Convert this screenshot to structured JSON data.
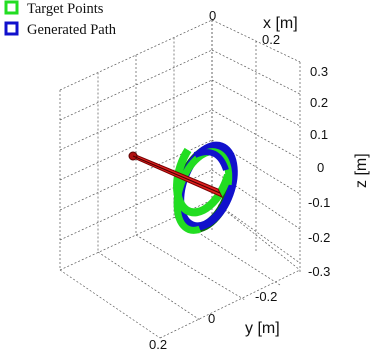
{
  "chart_data": {
    "type": "scatter",
    "projection": "3d",
    "legend": {
      "placement": "top-left",
      "entries": [
        {
          "name": "Target Points",
          "color": "#22dd22"
        },
        {
          "name": "Generated Path",
          "color": "#1111cc"
        }
      ]
    },
    "axes": {
      "x": {
        "label": "x [m]",
        "ticks": [
          "0",
          "0.2"
        ]
      },
      "y": {
        "label": "y [m]",
        "ticks": [
          "-0.2",
          "0",
          "0.2"
        ]
      },
      "z": {
        "label": "z [m]",
        "ticks": [
          "0.3",
          "0.2",
          "0.1",
          "0",
          "-0.1",
          "-0.2",
          "-0.3"
        ]
      }
    },
    "grid": true,
    "series": [
      {
        "name": "Target Points",
        "shape": "ring",
        "color": "#22dd22"
      },
      {
        "name": "Generated Path",
        "shape": "ring",
        "color": "#1111cc"
      }
    ],
    "tool_color": "#dd2222"
  }
}
